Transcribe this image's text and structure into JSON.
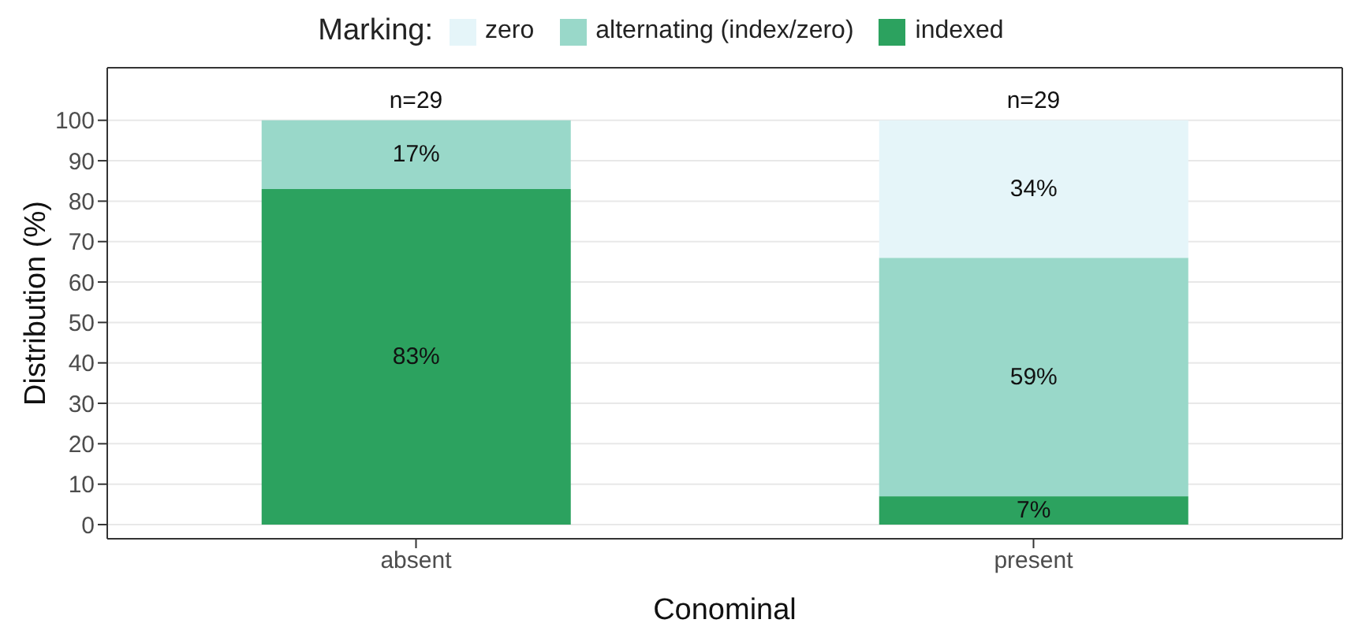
{
  "chart_data": {
    "type": "bar",
    "stacked": true,
    "xlabel": "Conominal",
    "ylabel": "Distribution (%)",
    "legend_title": "Marking:",
    "legend": "top",
    "grid": "y",
    "categories": [
      "absent",
      "present"
    ],
    "series": [
      {
        "name": "indexed",
        "color": "#2ca25f",
        "values": [
          83,
          7
        ],
        "value_labels": [
          "83%",
          "7%"
        ]
      },
      {
        "name": "alternating (index/zero)",
        "color": "#99d8c9",
        "values": [
          17,
          59
        ],
        "value_labels": [
          "17%",
          "59%"
        ]
      },
      {
        "name": "zero",
        "color": "#e5f5f9",
        "values": [
          0,
          34
        ],
        "value_labels": [
          null,
          "34%"
        ]
      }
    ],
    "ylim": [
      -3.5,
      113
    ],
    "yticks": [
      0,
      10,
      20,
      30,
      40,
      50,
      60,
      70,
      80,
      90,
      100
    ],
    "annotations": [
      {
        "text": "n=29",
        "x": "absent",
        "y": 100
      },
      {
        "text": "n=29",
        "x": "present",
        "y": 100
      }
    ]
  }
}
